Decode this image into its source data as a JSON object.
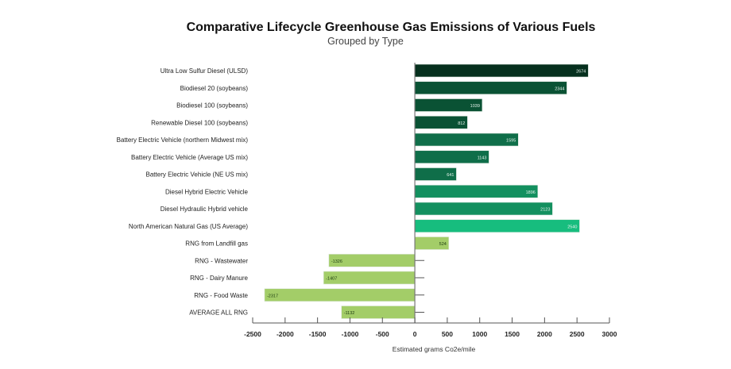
{
  "chart_data": {
    "type": "bar",
    "orientation": "horizontal",
    "title": "Comparative Lifecycle Greenhouse Gas Emissions of Various Fuels",
    "subtitle": "Grouped by Type",
    "xlabel": "Estimated grams Co2e/mile",
    "ylabel": "",
    "xlim": [
      -2500,
      3000
    ],
    "xticks": [
      -2500,
      -2000,
      -1500,
      -1000,
      -500,
      0,
      500,
      1000,
      1500,
      2000,
      2500,
      3000
    ],
    "grid": false,
    "categories": [
      "Ultra Low Sulfur Diesel (ULSD)",
      "Biodiesel 20 (soybeans)",
      "Biodiesel 100 (soybeans)",
      "Renewable Diesel 100 (soybeans)",
      "Battery Electric Vehicle (northern Midwest mix)",
      "Battery Electric Vehicle (Average US mix)",
      "Battery Electric Vehicle (NE US mix)",
      "Diesel Hybrid Electric Vehicle",
      "Diesel Hydraulic Hybrid vehicle",
      "North American Natural Gas (US Average)",
      "RNG from Landfill gas",
      "RNG - Wastewater",
      "RNG - Dairy Manure",
      "RNG - Food Waste",
      "AVERAGE ALL RNG"
    ],
    "values": [
      2674,
      2344,
      1039,
      812,
      1595,
      1143,
      641,
      1896,
      2123,
      2540,
      524,
      -1326,
      -1407,
      -2317,
      -1132
    ],
    "colors": [
      "#06301e",
      "#0a5234",
      "#0a5234",
      "#0a5234",
      "#0f6e49",
      "#0f6e49",
      "#0f6e49",
      "#13905f",
      "#13905f",
      "#17bd7e",
      "#a3cd68",
      "#a3cd68",
      "#a3cd68",
      "#a3cd68",
      "#a3cd68"
    ]
  }
}
